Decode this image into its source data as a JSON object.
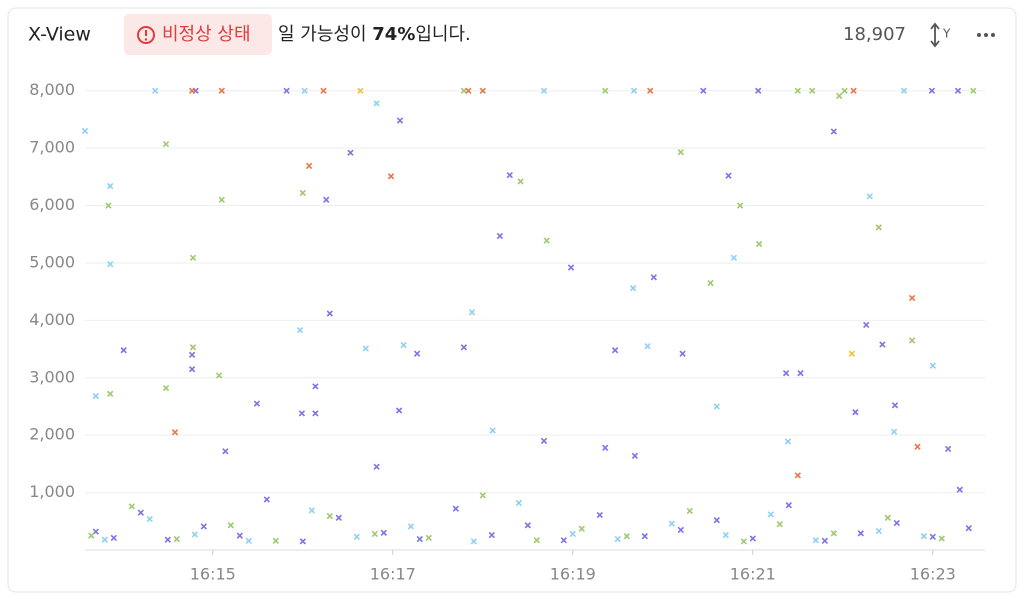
{
  "chart_data": {
    "type": "scatter",
    "title": "X-View",
    "status_badge": "비정상 상태",
    "message_prefix": "일 가능성이",
    "probability": "74%",
    "message_suffix": "입니다.",
    "count": {
      "value": 18907,
      "label": "18,907"
    },
    "axis_toggle": "Y",
    "xlim": [
      973.58,
      983.58
    ],
    "ylim": [
      0,
      8100
    ],
    "xticks": [
      {
        "value": 975,
        "label": "16:15"
      },
      {
        "value": 977,
        "label": "16:17"
      },
      {
        "value": 979,
        "label": "16:19"
      },
      {
        "value": 981,
        "label": "16:21"
      },
      {
        "value": 983,
        "label": "16:23"
      }
    ],
    "yticks": [
      {
        "value": 1000,
        "label": "1,000"
      },
      {
        "value": 2000,
        "label": "2,000"
      },
      {
        "value": 3000,
        "label": "3,000"
      },
      {
        "value": 4000,
        "label": "4,000"
      },
      {
        "value": 5000,
        "label": "5,000"
      },
      {
        "value": 6000,
        "label": "6,000"
      },
      {
        "value": 7000,
        "label": "7,000"
      },
      {
        "value": 8000,
        "label": "8,000"
      }
    ],
    "grid": true,
    "series": [
      {
        "color": "#7a74e6",
        "x": [
          974.01,
          974.77,
          974.77,
          974.81,
          975.14,
          975.49,
          975.82,
          975.99,
          976.14,
          976.14,
          976.26,
          976.3,
          976.53,
          976.82,
          977.08,
          977.07,
          977.27,
          977.79,
          978.19,
          978.3,
          978.68,
          978.98,
          979.36,
          979.47,
          979.69,
          979.9,
          980.22,
          980.45,
          980.73,
          981.06,
          981.37,
          981.53,
          981.9,
          982.14,
          982.26,
          982.44,
          982.58,
          982.99,
          983.17,
          983.28,
          983.3,
          973.7,
          973.9,
          974.2,
          974.5,
          974.9,
          975.3,
          975.6,
          976.0,
          976.4,
          976.9,
          977.3,
          977.7,
          978.1,
          978.5,
          978.9,
          979.3,
          979.8,
          980.2,
          980.6,
          981.0,
          981.4,
          981.8,
          982.2,
          982.6,
          983.0,
          983.4
        ],
        "values": [
          3480,
          3400,
          3150,
          8000,
          1720,
          2550,
          8000,
          2380,
          2850,
          2380,
          6100,
          4120,
          6920,
          1450,
          7480,
          2430,
          3420,
          3530,
          5470,
          6530,
          1900,
          4920,
          1780,
          3480,
          1640,
          4750,
          3420,
          8000,
          6520,
          8000,
          3080,
          3080,
          7290,
          2400,
          3920,
          3580,
          2520,
          8000,
          1760,
          8000,
          1050,
          320,
          210,
          650,
          180,
          410,
          250,
          880,
          150,
          560,
          300,
          190,
          720,
          260,
          430,
          170,
          610,
          240,
          350,
          520,
          200,
          780,
          160,
          290,
          470,
          230,
          380
        ]
      },
      {
        "color": "#8fd0f2",
        "x": [
          973.58,
          973.7,
          973.86,
          973.86,
          974.36,
          975.97,
          976.02,
          976.82,
          976.7,
          977.12,
          977.88,
          978.11,
          978.68,
          979.67,
          979.68,
          979.83,
          980.6,
          980.79,
          981.39,
          982.3,
          982.57,
          982.68,
          983.0,
          973.8,
          974.3,
          974.8,
          975.4,
          976.1,
          976.6,
          977.2,
          977.9,
          978.4,
          979.0,
          979.5,
          980.1,
          980.7,
          981.2,
          981.7,
          982.4,
          982.9
        ],
        "values": [
          7300,
          2680,
          4980,
          6340,
          8000,
          3830,
          8000,
          7780,
          3510,
          3570,
          4140,
          2080,
          8000,
          4560,
          8000,
          3550,
          2500,
          5090,
          1890,
          6160,
          2060,
          8000,
          3210,
          180,
          540,
          270,
          160,
          690,
          230,
          410,
          150,
          820,
          280,
          190,
          460,
          260,
          620,
          170,
          330,
          240
        ]
      },
      {
        "color": "#a0c870",
        "x": [
          973.84,
          973.86,
          974.48,
          974.48,
          974.78,
          974.78,
          975.1,
          975.07,
          976.0,
          977.79,
          978.42,
          978.71,
          979.36,
          980.2,
          980.53,
          980.86,
          981.07,
          981.5,
          981.66,
          981.96,
          982.02,
          982.4,
          982.77,
          983.45,
          973.65,
          974.1,
          974.6,
          975.2,
          975.7,
          976.3,
          976.8,
          977.4,
          978.0,
          978.6,
          979.1,
          979.6,
          980.3,
          980.9,
          981.3,
          981.9,
          982.5,
          983.1
        ],
        "values": [
          6000,
          2720,
          7070,
          2820,
          5090,
          3530,
          6100,
          3040,
          6220,
          8000,
          6420,
          5390,
          8000,
          6930,
          4650,
          6000,
          5330,
          8000,
          8000,
          7910,
          8000,
          5620,
          3650,
          8000,
          250,
          760,
          190,
          430,
          160,
          590,
          280,
          210,
          950,
          170,
          370,
          240,
          680,
          150,
          450,
          290,
          560,
          200
        ]
      },
      {
        "color": "#e8764a",
        "x": [
          974.58,
          974.77,
          975.1,
          976.07,
          976.23,
          976.98,
          977.84,
          978.0,
          979.86,
          982.12,
          982.77,
          982.83,
          981.5
        ],
        "values": [
          2050,
          8000,
          8000,
          6690,
          8000,
          6510,
          8000,
          8000,
          8000,
          8000,
          4390,
          1800,
          1300
        ]
      },
      {
        "color": "#f0c040",
        "x": [
          976.64,
          982.1
        ],
        "values": [
          8000,
          3420
        ]
      }
    ]
  }
}
